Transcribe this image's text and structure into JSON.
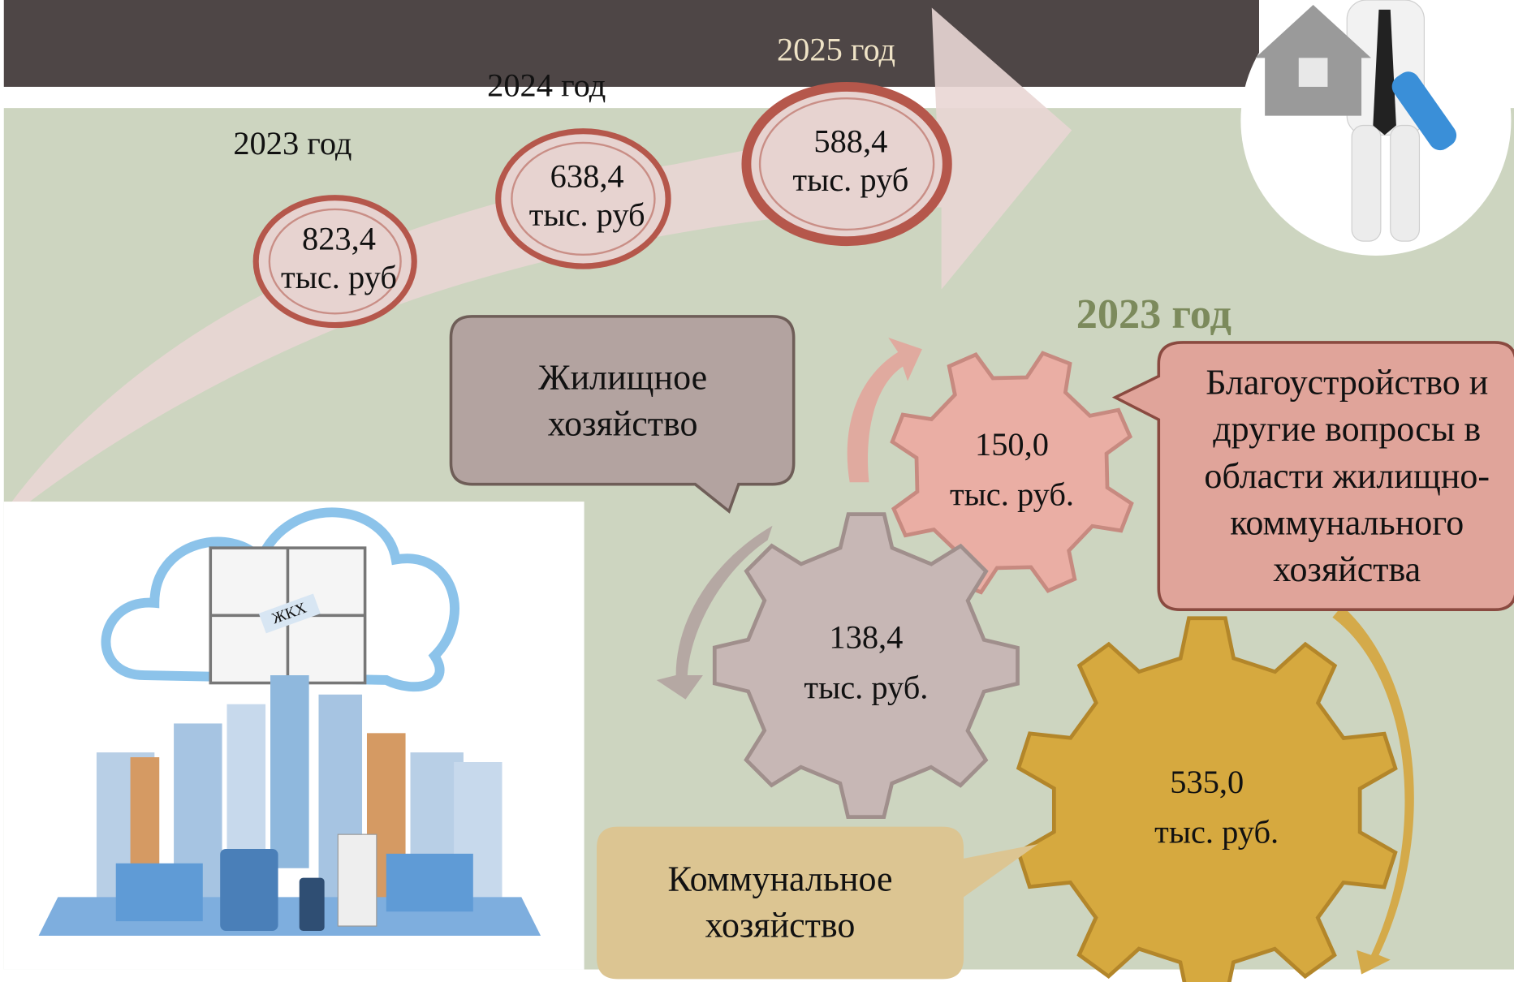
{
  "timeline": {
    "items": [
      {
        "year": "2023 год",
        "amount": "823,4",
        "unit": "тыс. руб"
      },
      {
        "year": "2024 год",
        "amount": "638,4",
        "unit": "тыс. руб"
      },
      {
        "year": "2025 год",
        "amount": "588,4",
        "unit": "тыс. руб"
      }
    ]
  },
  "illustration": {
    "sign": "ЖКХ"
  },
  "gears": {
    "title": "2023 год",
    "items": [
      {
        "amount": "150,0",
        "unit": "тыс. руб.",
        "label": [
          "Благоустройство и",
          "другие вопросы в",
          "области жилищно-",
          "коммунального",
          "хозяйства"
        ]
      },
      {
        "amount": "138,4",
        "unit": "тыс. руб.",
        "label": [
          "Жилищное",
          "хозяйство"
        ]
      },
      {
        "amount": "535,0",
        "unit": "тыс. руб.",
        "label": [
          "Коммунальное",
          "хозяйство"
        ]
      }
    ]
  }
}
